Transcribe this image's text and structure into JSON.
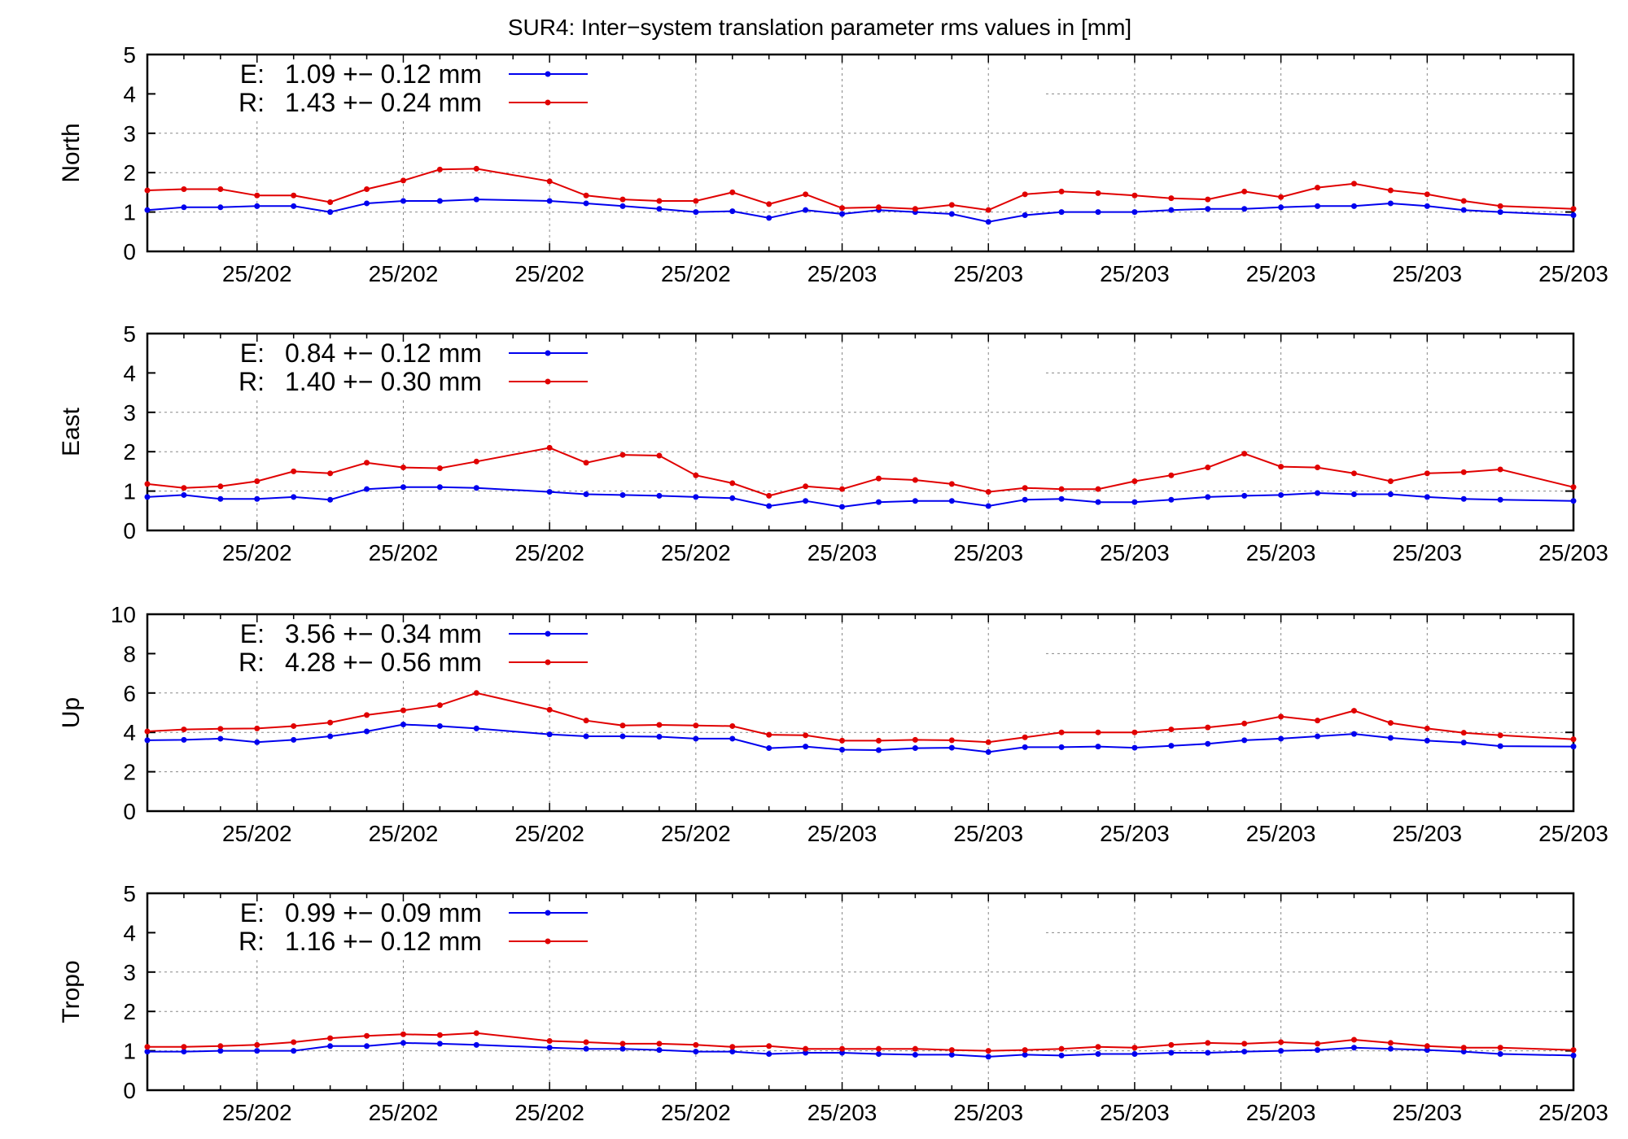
{
  "title": "SUR4: Inter−system translation parameter rms values in [mm]",
  "colors": {
    "E": "#0000ee",
    "R": "#e00000",
    "grid": "#888888",
    "axis": "#000000"
  },
  "chart_data": [
    {
      "type": "line",
      "ylabel": "North",
      "ylim": [
        0,
        5
      ],
      "yticks": [
        0,
        1,
        2,
        3,
        4,
        5
      ],
      "xlim": [
        0,
        39
      ],
      "xtick_positions": [
        3,
        7,
        11,
        15,
        19,
        23,
        27,
        31,
        35,
        39
      ],
      "xtick_labels": [
        "25/202",
        "25/202",
        "25/202",
        "25/202",
        "25/203",
        "25/203",
        "25/203",
        "25/203",
        "25/203",
        "25/203"
      ],
      "grid": true,
      "series": [
        {
          "name": "E:",
          "legend": "1.09 +− 0.12 mm",
          "x": [
            0,
            1,
            2,
            3,
            4,
            5,
            6,
            7,
            8,
            9,
            11,
            12,
            13,
            14,
            15,
            16,
            17,
            18,
            19,
            20,
            21,
            22,
            23,
            24,
            25,
            26,
            27,
            28,
            29,
            30,
            31,
            32,
            33,
            34,
            35,
            36,
            37,
            39
          ],
          "y": [
            1.05,
            1.12,
            1.12,
            1.15,
            1.15,
            1.0,
            1.22,
            1.28,
            1.28,
            1.32,
            1.28,
            1.22,
            1.15,
            1.08,
            1.0,
            1.02,
            0.85,
            1.05,
            0.95,
            1.05,
            1.0,
            0.95,
            0.75,
            0.92,
            1.0,
            1.0,
            1.0,
            1.05,
            1.08,
            1.08,
            1.12,
            1.15,
            1.15,
            1.22,
            1.15,
            1.05,
            1.0,
            0.92
          ]
        },
        {
          "name": "R:",
          "legend": "1.43 +− 0.24 mm",
          "x": [
            0,
            1,
            2,
            3,
            4,
            5,
            6,
            7,
            8,
            9,
            11,
            12,
            13,
            14,
            15,
            16,
            17,
            18,
            19,
            20,
            21,
            22,
            23,
            24,
            25,
            26,
            27,
            28,
            29,
            30,
            31,
            32,
            33,
            34,
            35,
            36,
            37,
            39
          ],
          "y": [
            1.55,
            1.58,
            1.58,
            1.42,
            1.42,
            1.25,
            1.58,
            1.8,
            2.08,
            2.1,
            1.78,
            1.42,
            1.32,
            1.28,
            1.28,
            1.5,
            1.2,
            1.45,
            1.1,
            1.12,
            1.08,
            1.18,
            1.05,
            1.45,
            1.52,
            1.48,
            1.42,
            1.35,
            1.32,
            1.52,
            1.38,
            1.62,
            1.72,
            1.55,
            1.45,
            1.28,
            1.15,
            1.08
          ]
        }
      ]
    },
    {
      "type": "line",
      "ylabel": "East",
      "ylim": [
        0,
        5
      ],
      "yticks": [
        0,
        1,
        2,
        3,
        4,
        5
      ],
      "xlim": [
        0,
        39
      ],
      "xtick_positions": [
        3,
        7,
        11,
        15,
        19,
        23,
        27,
        31,
        35,
        39
      ],
      "xtick_labels": [
        "25/202",
        "25/202",
        "25/202",
        "25/202",
        "25/203",
        "25/203",
        "25/203",
        "25/203",
        "25/203",
        "25/203"
      ],
      "grid": true,
      "series": [
        {
          "name": "E:",
          "legend": "0.84 +− 0.12 mm",
          "x": [
            0,
            1,
            2,
            3,
            4,
            5,
            6,
            7,
            8,
            9,
            11,
            12,
            13,
            14,
            15,
            16,
            17,
            18,
            19,
            20,
            21,
            22,
            23,
            24,
            25,
            26,
            27,
            28,
            29,
            30,
            31,
            32,
            33,
            34,
            35,
            36,
            37,
            39
          ],
          "y": [
            0.85,
            0.9,
            0.8,
            0.8,
            0.85,
            0.78,
            1.05,
            1.1,
            1.1,
            1.08,
            0.98,
            0.92,
            0.9,
            0.88,
            0.85,
            0.82,
            0.62,
            0.75,
            0.6,
            0.72,
            0.75,
            0.75,
            0.62,
            0.78,
            0.8,
            0.72,
            0.72,
            0.78,
            0.85,
            0.88,
            0.9,
            0.95,
            0.92,
            0.92,
            0.85,
            0.8,
            0.78,
            0.75
          ]
        },
        {
          "name": "R:",
          "legend": "1.40 +− 0.30 mm",
          "x": [
            0,
            1,
            2,
            3,
            4,
            5,
            6,
            7,
            8,
            9,
            11,
            12,
            13,
            14,
            15,
            16,
            17,
            18,
            19,
            20,
            21,
            22,
            23,
            24,
            25,
            26,
            27,
            28,
            29,
            30,
            31,
            32,
            33,
            34,
            35,
            36,
            37,
            39
          ],
          "y": [
            1.18,
            1.08,
            1.12,
            1.25,
            1.5,
            1.45,
            1.72,
            1.6,
            1.58,
            1.75,
            2.1,
            1.72,
            1.92,
            1.9,
            1.4,
            1.2,
            0.88,
            1.12,
            1.05,
            1.32,
            1.28,
            1.18,
            0.98,
            1.08,
            1.05,
            1.05,
            1.25,
            1.4,
            1.6,
            1.95,
            1.62,
            1.6,
            1.45,
            1.25,
            1.45,
            1.48,
            1.55,
            1.1
          ]
        }
      ]
    },
    {
      "type": "line",
      "ylabel": "Up",
      "ylim": [
        0,
        10
      ],
      "yticks": [
        0,
        2,
        4,
        6,
        8,
        10
      ],
      "xlim": [
        0,
        39
      ],
      "xtick_positions": [
        3,
        7,
        11,
        15,
        19,
        23,
        27,
        31,
        35,
        39
      ],
      "xtick_labels": [
        "25/202",
        "25/202",
        "25/202",
        "25/202",
        "25/203",
        "25/203",
        "25/203",
        "25/203",
        "25/203",
        "25/203"
      ],
      "grid": true,
      "series": [
        {
          "name": "E:",
          "legend": "3.56 +− 0.34 mm",
          "x": [
            0,
            1,
            2,
            3,
            4,
            5,
            6,
            7,
            8,
            9,
            11,
            12,
            13,
            14,
            15,
            16,
            17,
            18,
            19,
            20,
            21,
            22,
            23,
            24,
            25,
            26,
            27,
            28,
            29,
            30,
            31,
            32,
            33,
            34,
            35,
            36,
            37,
            39
          ],
          "y": [
            3.6,
            3.62,
            3.68,
            3.5,
            3.62,
            3.8,
            4.05,
            4.4,
            4.32,
            4.2,
            3.9,
            3.8,
            3.8,
            3.78,
            3.68,
            3.68,
            3.2,
            3.28,
            3.12,
            3.1,
            3.2,
            3.22,
            3.0,
            3.25,
            3.25,
            3.28,
            3.22,
            3.32,
            3.42,
            3.6,
            3.68,
            3.8,
            3.92,
            3.72,
            3.58,
            3.48,
            3.3,
            3.28
          ]
        },
        {
          "name": "R:",
          "legend": "4.28 +− 0.56 mm",
          "x": [
            0,
            1,
            2,
            3,
            4,
            5,
            6,
            7,
            8,
            9,
            11,
            12,
            13,
            14,
            15,
            16,
            17,
            18,
            19,
            20,
            21,
            22,
            23,
            24,
            25,
            26,
            27,
            28,
            29,
            30,
            31,
            32,
            33,
            34,
            35,
            36,
            37,
            39
          ],
          "y": [
            4.05,
            4.15,
            4.18,
            4.2,
            4.32,
            4.5,
            4.88,
            5.12,
            5.38,
            6.0,
            5.15,
            4.6,
            4.35,
            4.38,
            4.35,
            4.32,
            3.88,
            3.85,
            3.58,
            3.58,
            3.62,
            3.6,
            3.5,
            3.75,
            4.0,
            4.0,
            4.0,
            4.15,
            4.25,
            4.45,
            4.8,
            4.6,
            5.1,
            4.48,
            4.2,
            3.98,
            3.85,
            3.65
          ]
        }
      ]
    },
    {
      "type": "line",
      "ylabel": "Tropo",
      "ylim": [
        0,
        5
      ],
      "yticks": [
        0,
        1,
        2,
        3,
        4,
        5
      ],
      "xlim": [
        0,
        39
      ],
      "xtick_positions": [
        3,
        7,
        11,
        15,
        19,
        23,
        27,
        31,
        35,
        39
      ],
      "xtick_labels": [
        "25/202",
        "25/202",
        "25/202",
        "25/202",
        "25/203",
        "25/203",
        "25/203",
        "25/203",
        "25/203",
        "25/203"
      ],
      "grid": true,
      "series": [
        {
          "name": "E:",
          "legend": "0.99 +− 0.09 mm",
          "x": [
            0,
            1,
            2,
            3,
            4,
            5,
            6,
            7,
            8,
            9,
            11,
            12,
            13,
            14,
            15,
            16,
            17,
            18,
            19,
            20,
            21,
            22,
            23,
            24,
            25,
            26,
            27,
            28,
            29,
            30,
            31,
            32,
            33,
            34,
            35,
            36,
            37,
            39
          ],
          "y": [
            0.98,
            0.98,
            1.0,
            1.0,
            1.0,
            1.12,
            1.12,
            1.2,
            1.18,
            1.15,
            1.08,
            1.05,
            1.05,
            1.02,
            0.98,
            0.98,
            0.92,
            0.95,
            0.95,
            0.92,
            0.9,
            0.9,
            0.85,
            0.9,
            0.88,
            0.92,
            0.92,
            0.95,
            0.95,
            0.98,
            1.0,
            1.02,
            1.08,
            1.05,
            1.02,
            0.98,
            0.92,
            0.88
          ]
        },
        {
          "name": "R:",
          "legend": "1.16 +− 0.12 mm",
          "x": [
            0,
            1,
            2,
            3,
            4,
            5,
            6,
            7,
            8,
            9,
            11,
            12,
            13,
            14,
            15,
            16,
            17,
            18,
            19,
            20,
            21,
            22,
            23,
            24,
            25,
            26,
            27,
            28,
            29,
            30,
            31,
            32,
            33,
            34,
            35,
            36,
            37,
            39
          ],
          "y": [
            1.1,
            1.1,
            1.12,
            1.15,
            1.22,
            1.32,
            1.38,
            1.42,
            1.4,
            1.45,
            1.25,
            1.22,
            1.18,
            1.18,
            1.15,
            1.1,
            1.12,
            1.05,
            1.05,
            1.05,
            1.05,
            1.02,
            1.0,
            1.02,
            1.05,
            1.1,
            1.08,
            1.15,
            1.2,
            1.18,
            1.22,
            1.18,
            1.28,
            1.2,
            1.12,
            1.08,
            1.08,
            1.02
          ]
        }
      ]
    }
  ]
}
